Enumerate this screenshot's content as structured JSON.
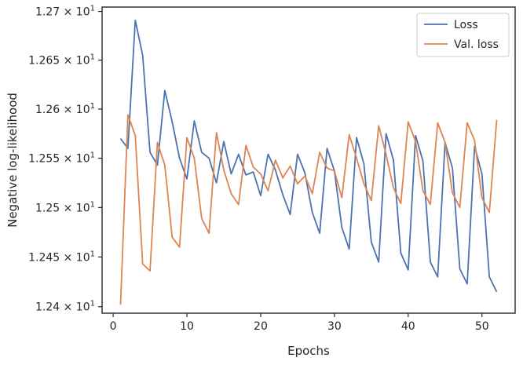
{
  "chart_data": {
    "type": "line",
    "xlabel": "Epochs",
    "ylabel": "Negative log-likelihood",
    "x_ticks": [
      0,
      10,
      20,
      30,
      40,
      50
    ],
    "y_ticks": [
      {
        "value": 12.4,
        "base": "1.24",
        "exp": "1"
      },
      {
        "value": 12.45,
        "base": "1.245",
        "exp": "1"
      },
      {
        "value": 12.5,
        "base": "1.25",
        "exp": "1"
      },
      {
        "value": 12.55,
        "base": "1.255",
        "exp": "1"
      },
      {
        "value": 12.6,
        "base": "1.26",
        "exp": "1"
      },
      {
        "value": 12.65,
        "base": "1.265",
        "exp": "1"
      },
      {
        "value": 12.7,
        "base": "1.27",
        "exp": "1"
      }
    ],
    "times_symbol": "×",
    "y_base_text": "10",
    "xlim": [
      -1.5,
      54.5
    ],
    "ylim": [
      12.3935,
      12.7045
    ],
    "y_scale": "log",
    "grid": false,
    "legend_position": "top-right",
    "x": [
      1,
      2,
      3,
      4,
      5,
      6,
      7,
      8,
      9,
      10,
      11,
      12,
      13,
      14,
      15,
      16,
      17,
      18,
      19,
      20,
      21,
      22,
      23,
      24,
      25,
      26,
      27,
      28,
      29,
      30,
      31,
      32,
      33,
      34,
      35,
      36,
      37,
      38,
      39,
      40,
      41,
      42,
      43,
      44,
      45,
      46,
      47,
      48,
      49,
      50,
      51,
      52
    ],
    "series": [
      {
        "name": "Loss",
        "color": "#4c72b0",
        "values": [
          12.57,
          12.56,
          12.691,
          12.655,
          12.556,
          12.543,
          12.619,
          12.587,
          12.55,
          12.529,
          12.588,
          12.556,
          12.55,
          12.525,
          12.567,
          12.534,
          12.554,
          12.533,
          12.536,
          12.512,
          12.554,
          12.538,
          12.513,
          12.493,
          12.554,
          12.535,
          12.495,
          12.474,
          12.56,
          12.537,
          12.48,
          12.458,
          12.571,
          12.544,
          12.465,
          12.445,
          12.575,
          12.548,
          12.454,
          12.437,
          12.573,
          12.547,
          12.445,
          12.43,
          12.566,
          12.54,
          12.438,
          12.423,
          12.562,
          12.534,
          12.43,
          12.415
        ]
      },
      {
        "name": "Val. loss",
        "color": "#dd8452",
        "values": [
          12.402,
          12.594,
          12.573,
          12.443,
          12.436,
          12.566,
          12.543,
          12.47,
          12.46,
          12.571,
          12.55,
          12.489,
          12.474,
          12.576,
          12.538,
          12.514,
          12.503,
          12.563,
          12.541,
          12.534,
          12.517,
          12.548,
          12.53,
          12.542,
          12.524,
          12.532,
          12.514,
          12.556,
          12.54,
          12.537,
          12.51,
          12.574,
          12.55,
          12.524,
          12.507,
          12.583,
          12.554,
          12.52,
          12.504,
          12.587,
          12.567,
          12.517,
          12.503,
          12.586,
          12.566,
          12.515,
          12.5,
          12.586,
          12.568,
          12.51,
          12.495,
          12.589
        ]
      }
    ]
  }
}
